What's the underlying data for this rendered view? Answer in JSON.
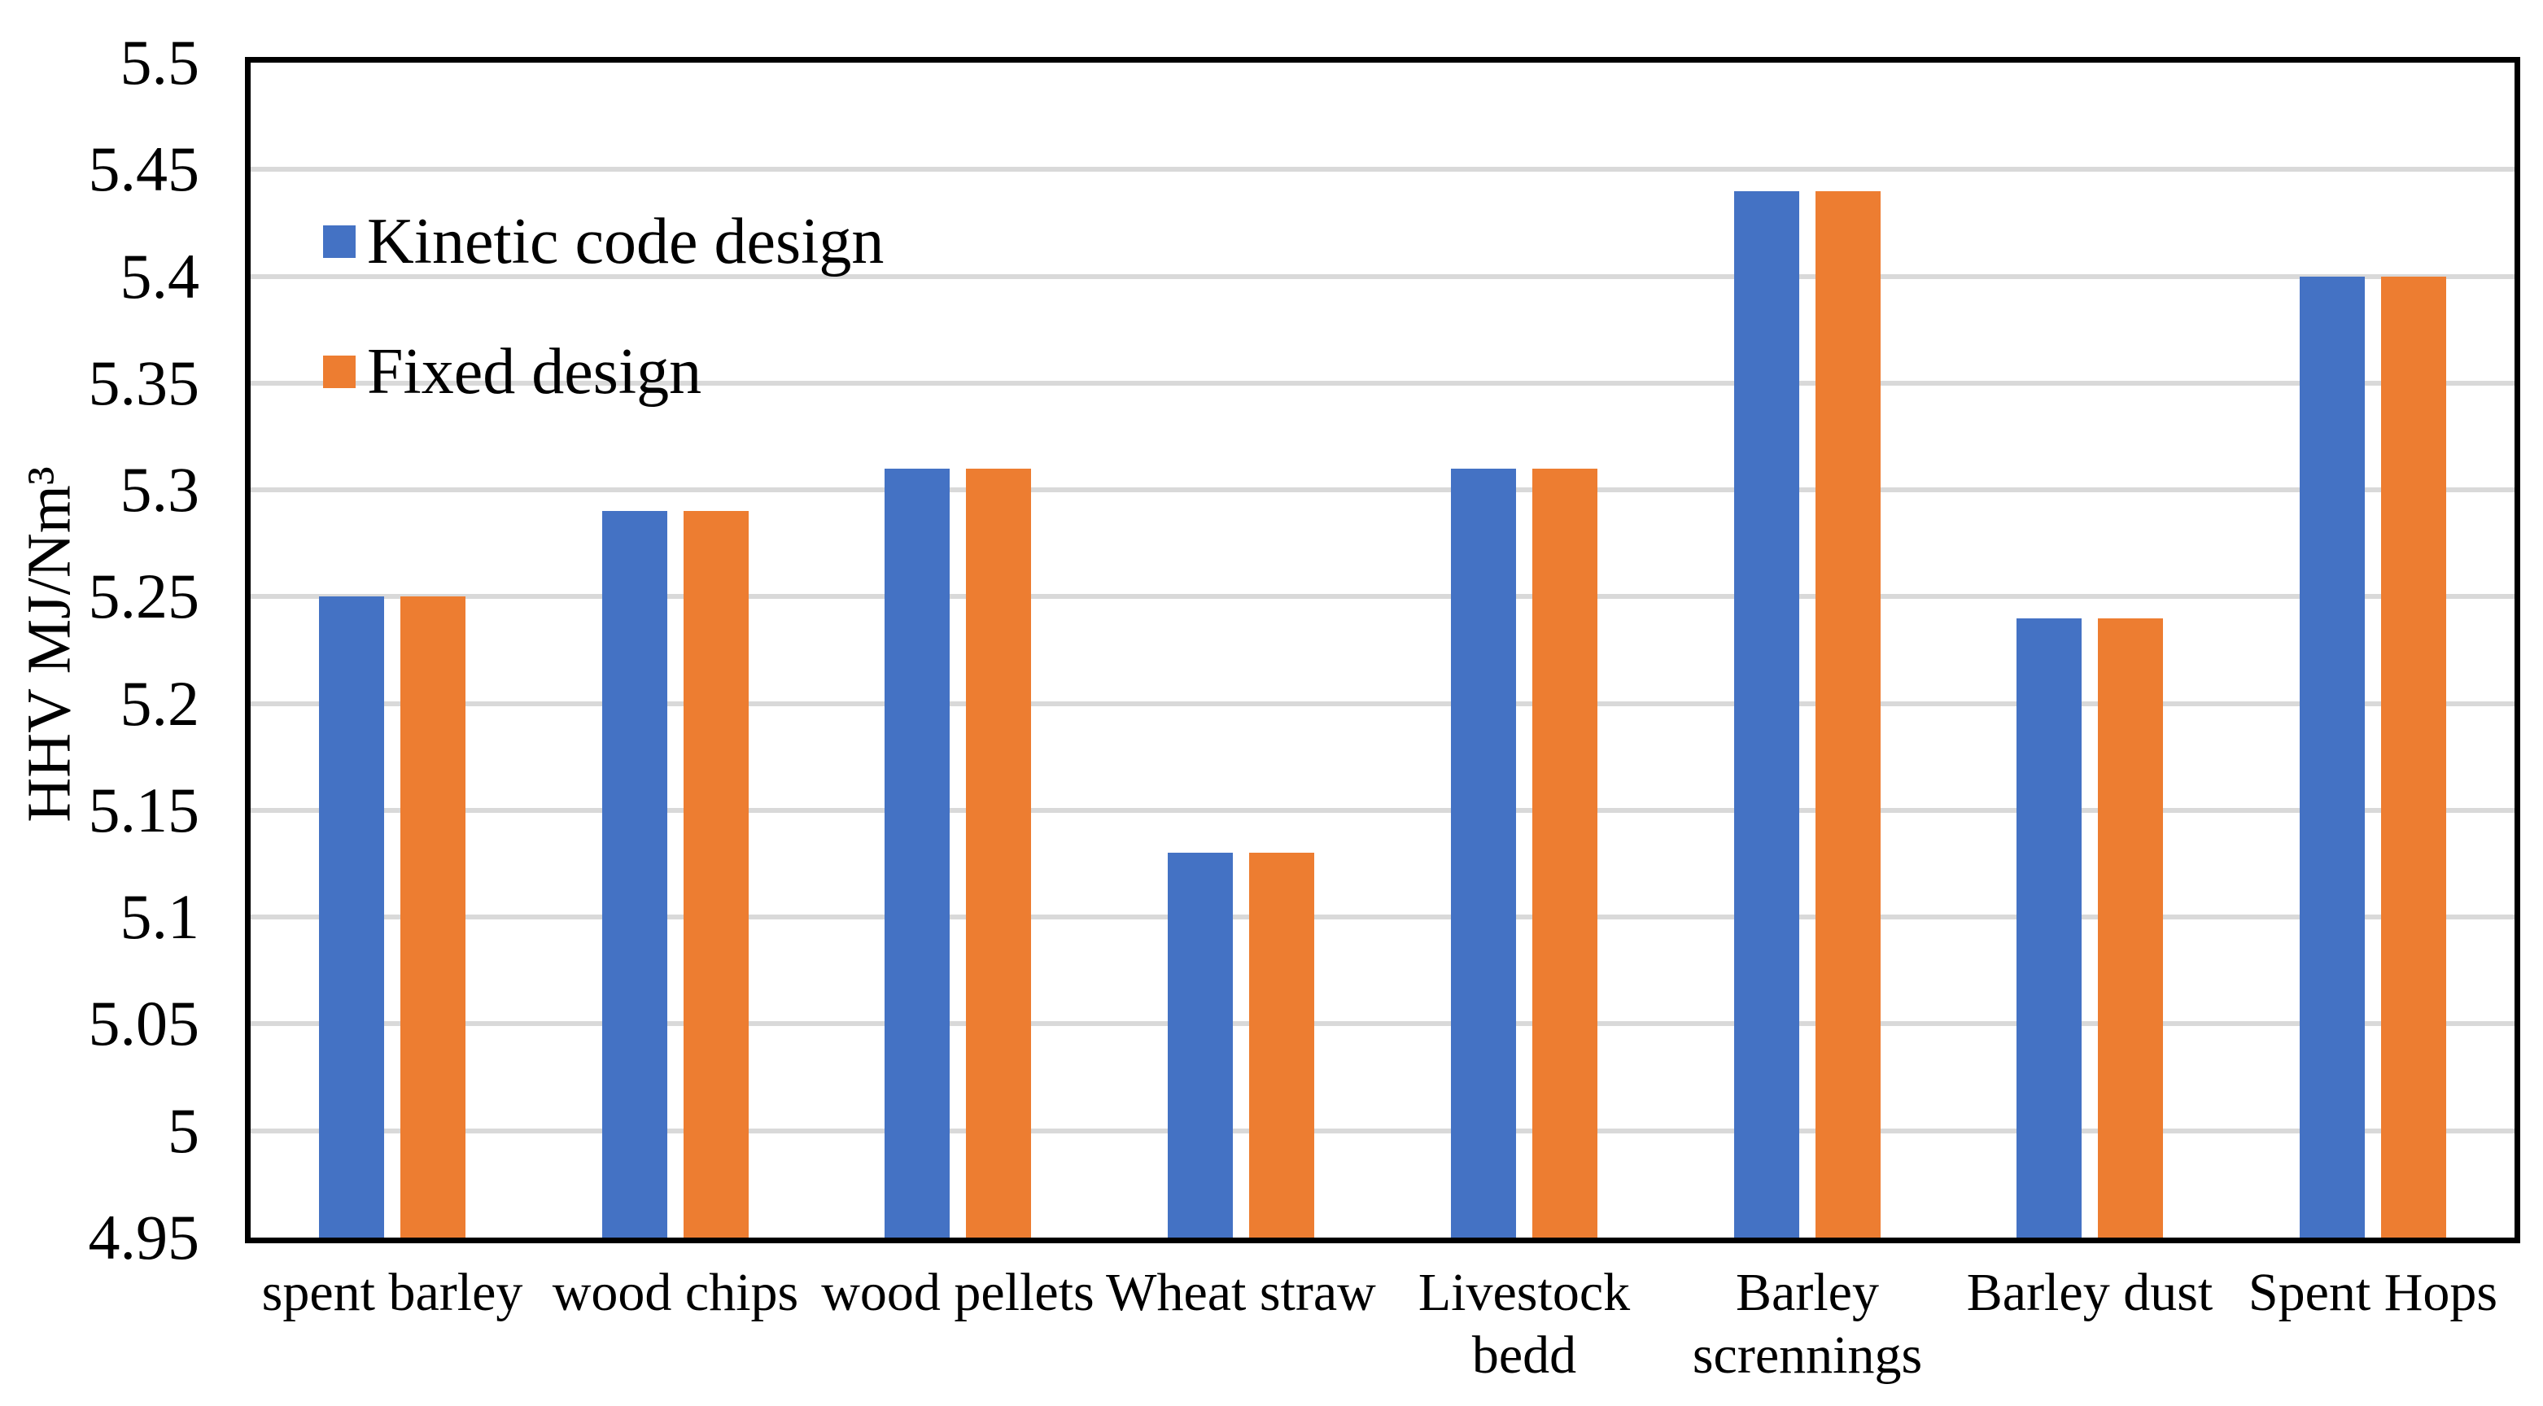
{
  "chart_data": {
    "type": "bar",
    "title": "",
    "categories": [
      "spent barley",
      "wood chips",
      "wood pellets",
      "Wheat straw",
      "Livestock bedd",
      "Barley scrennings",
      "Barley dust",
      "Spent Hops"
    ],
    "series": [
      {
        "name": "Kinetic code design",
        "color": "#4472C4",
        "values": [
          5.25,
          5.29,
          5.31,
          5.13,
          5.31,
          5.44,
          5.24,
          5.4
        ]
      },
      {
        "name": "Fixed design",
        "color": "#ED7D31",
        "values": [
          5.25,
          5.29,
          5.31,
          5.13,
          5.31,
          5.44,
          5.24,
          5.4
        ]
      }
    ],
    "xlabel": "",
    "ylabel": "HHV  MJ/Nm³",
    "ylim": [
      4.95,
      5.5
    ],
    "ytick_step": 0.05,
    "ytick_labels": [
      "5.5",
      "5.45",
      "5.4",
      "5.35",
      "5.3",
      "5.25",
      "5.2",
      "5.15",
      "5.1",
      "5.05",
      "5",
      "4.95"
    ],
    "grid": true,
    "legend_position": "inside-top-left"
  },
  "colors": {
    "series1": "#4472C4",
    "series2": "#ED7D31",
    "gridline": "#D9D9D9",
    "axis_border": "#000000",
    "background": "#FFFFFF",
    "text": "#000000"
  }
}
